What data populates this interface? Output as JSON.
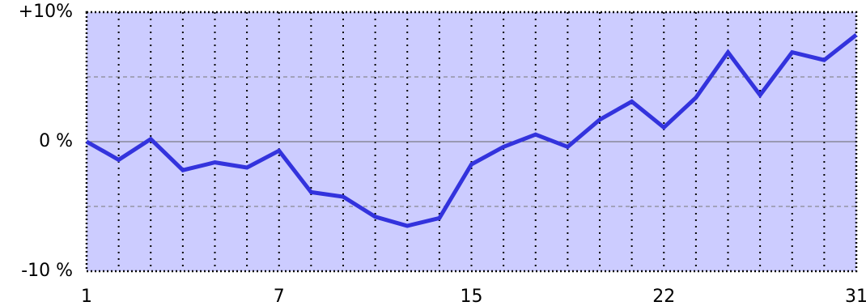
{
  "chart_data": {
    "type": "line",
    "categories": [
      "1",
      null,
      null,
      null,
      null,
      null,
      "7",
      null,
      null,
      null,
      null,
      null,
      "15",
      null,
      null,
      null,
      null,
      null,
      "22",
      null,
      null,
      null,
      null,
      null,
      "31"
    ],
    "series": [
      {
        "color": "#3333dd",
        "values": [
          0,
          -1.4,
          0.2,
          -2.2,
          -1.6,
          -2.0,
          -0.7,
          -3.9,
          -4.25,
          -5.8,
          -6.5,
          -5.9,
          -1.75,
          -0.4,
          0.55,
          -0.4,
          1.7,
          3.1,
          1.1,
          3.4,
          6.9,
          3.6,
          6.9,
          6.3,
          8.25
        ]
      }
    ],
    "ylim": [
      -10,
      10
    ],
    "yticks": [
      {
        "value": -10,
        "label": "-10 %"
      },
      {
        "value": 0,
        "label": "0 %"
      },
      {
        "value": 10,
        "label": "+10%"
      }
    ],
    "minor_yticks": [
      -5,
      5
    ],
    "background": "#ccccff",
    "grid": true
  }
}
